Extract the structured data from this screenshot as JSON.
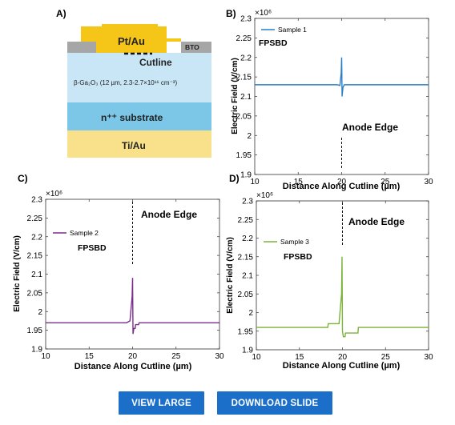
{
  "figure": {
    "panel_labels": {
      "a": "A)",
      "b": "B)",
      "c": "C)",
      "d": "D)"
    },
    "schematic": {
      "contact_label": "Pt/Au",
      "bto_label": "BTO",
      "cutline_label": "Cutline",
      "drift_layer_label": "β-Ga₂O₃ (12 µm, 2.3-2.7×10¹⁶ cm⁻³)",
      "substrate_label": "n⁺⁺ substrate",
      "back_contact_label": "Ti/Au",
      "colors": {
        "metal": "#f5c518",
        "bto": "#a6a6a6",
        "drift": "#c9e6f7",
        "substrate": "#7cc7e8",
        "back": "#f9e08a"
      }
    },
    "annotation_anode": "Anode Edge",
    "annotation_fpsbd": "FPSBD"
  },
  "chart_data": [
    {
      "panel": "B",
      "type": "line",
      "xlabel": "Distance Along Cutline (µm)",
      "ylabel": "Electric Field (V/cm)",
      "exponent_label": "×10⁶",
      "xlim": [
        10,
        30
      ],
      "ylim": [
        1.9,
        2.3
      ],
      "xticks": [
        "10",
        "15",
        "20",
        "25",
        "30"
      ],
      "yticks": [
        "1.9",
        "1.95",
        "2",
        "2.05",
        "2.1",
        "2.15",
        "2.2",
        "2.25",
        "2.3"
      ],
      "series": [
        {
          "name": "Sample 1",
          "color": "#2a7ec4",
          "x": [
            10,
            19.5,
            19.8,
            19.95,
            20.0,
            20.05,
            20.15,
            20.3,
            20.6,
            30
          ],
          "y": [
            2.13,
            2.13,
            2.128,
            2.16,
            2.2,
            2.1,
            2.123,
            2.13,
            2.13,
            2.13
          ]
        }
      ]
    },
    {
      "panel": "C",
      "type": "line",
      "xlabel": "Distance Along Cutline (µm)",
      "ylabel": "Electric Field (V/cm)",
      "exponent_label": "×10⁶",
      "xlim": [
        10,
        30
      ],
      "ylim": [
        1.9,
        2.3
      ],
      "xticks": [
        "10",
        "15",
        "20",
        "25",
        "30"
      ],
      "yticks": [
        "1.9",
        "1.95",
        "2",
        "2.05",
        "2.1",
        "2.15",
        "2.2",
        "2.25",
        "2.3"
      ],
      "series": [
        {
          "name": "Sample 2",
          "color": "#7b2d8e",
          "x": [
            10,
            19.3,
            19.7,
            19.95,
            20.0,
            20.05,
            20.15,
            20.3,
            20.35,
            20.7,
            20.75,
            30
          ],
          "y": [
            1.97,
            1.97,
            1.975,
            2.04,
            2.09,
            1.94,
            1.955,
            1.955,
            1.965,
            1.965,
            1.97,
            1.97
          ]
        }
      ]
    },
    {
      "panel": "D",
      "type": "line",
      "xlabel": "Distance Along Cutline (µm)",
      "ylabel": "Electric Field (V/cm)",
      "exponent_label": "×10⁶",
      "xlim": [
        10,
        30
      ],
      "ylim": [
        1.9,
        2.3
      ],
      "xticks": [
        "10",
        "15",
        "20",
        "25",
        "30"
      ],
      "yticks": [
        "1.9",
        "1.95",
        "2",
        "2.05",
        "2.1",
        "2.15",
        "2.2",
        "2.25",
        "2.3"
      ],
      "series": [
        {
          "name": "Sample 3",
          "color": "#7bb23a",
          "x": [
            10,
            18.3,
            18.35,
            19.6,
            19.9,
            19.95,
            20.0,
            20.1,
            20.3,
            20.35,
            21.8,
            21.85,
            30
          ],
          "y": [
            1.96,
            1.96,
            1.97,
            1.97,
            2.05,
            2.15,
            1.95,
            1.935,
            1.935,
            1.945,
            1.945,
            1.96,
            1.96
          ]
        }
      ]
    }
  ],
  "buttons": {
    "view_large": "VIEW LARGE",
    "download_slide": "DOWNLOAD SLIDE"
  }
}
